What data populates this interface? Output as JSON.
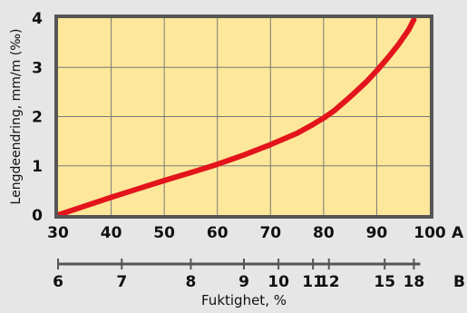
{
  "chart_data": {
    "type": "line",
    "title": "",
    "ylabel": "Lengdeendring, mm/m (‰)",
    "xlabel": "Fuktighet, %",
    "ylim": [
      0,
      4
    ],
    "xlim": [
      30,
      100
    ],
    "y_ticks": [
      "0",
      "1",
      "2",
      "3",
      "4"
    ],
    "x_ticks": [
      {
        "value": 30,
        "label": "30"
      },
      {
        "value": 40,
        "label": "40"
      },
      {
        "value": 50,
        "label": "50"
      },
      {
        "value": 60,
        "label": "60"
      },
      {
        "value": 70,
        "label": "70"
      },
      {
        "value": 80,
        "label": "80"
      },
      {
        "value": 90,
        "label": "90"
      },
      {
        "value": 100,
        "label": "100"
      }
    ],
    "x_axis_letter": "A",
    "secondary_axis": {
      "letter": "B",
      "ticks": [
        {
          "label": "6",
          "a_value": 30
        },
        {
          "label": "7",
          "a_value": 42
        },
        {
          "label": "8",
          "a_value": 55
        },
        {
          "label": "9",
          "a_value": 65
        },
        {
          "label": "10",
          "a_value": 71.5
        },
        {
          "label": "11",
          "a_value": 78
        },
        {
          "label": "12",
          "a_value": 81
        },
        {
          "label": "15",
          "a_value": 91.5
        },
        {
          "label": "18",
          "a_value": 97
        }
      ]
    },
    "grid": true,
    "series": [
      {
        "x": [
          30,
          35,
          40,
          45,
          50,
          55,
          60,
          65,
          70,
          75,
          78,
          80,
          82,
          85,
          88,
          90,
          92,
          94,
          96,
          97
        ],
        "y": [
          0,
          0.18,
          0.36,
          0.53,
          0.7,
          0.86,
          1.03,
          1.22,
          1.43,
          1.66,
          1.84,
          1.97,
          2.12,
          2.4,
          2.7,
          2.93,
          3.18,
          3.45,
          3.76,
          3.97
        ]
      }
    ],
    "colors": {
      "plot_bg": "#fde79a",
      "line": "#e3141b",
      "frame": "#555555",
      "grid": "#7a7a7a",
      "page_bg": "#e6e6e6"
    }
  }
}
